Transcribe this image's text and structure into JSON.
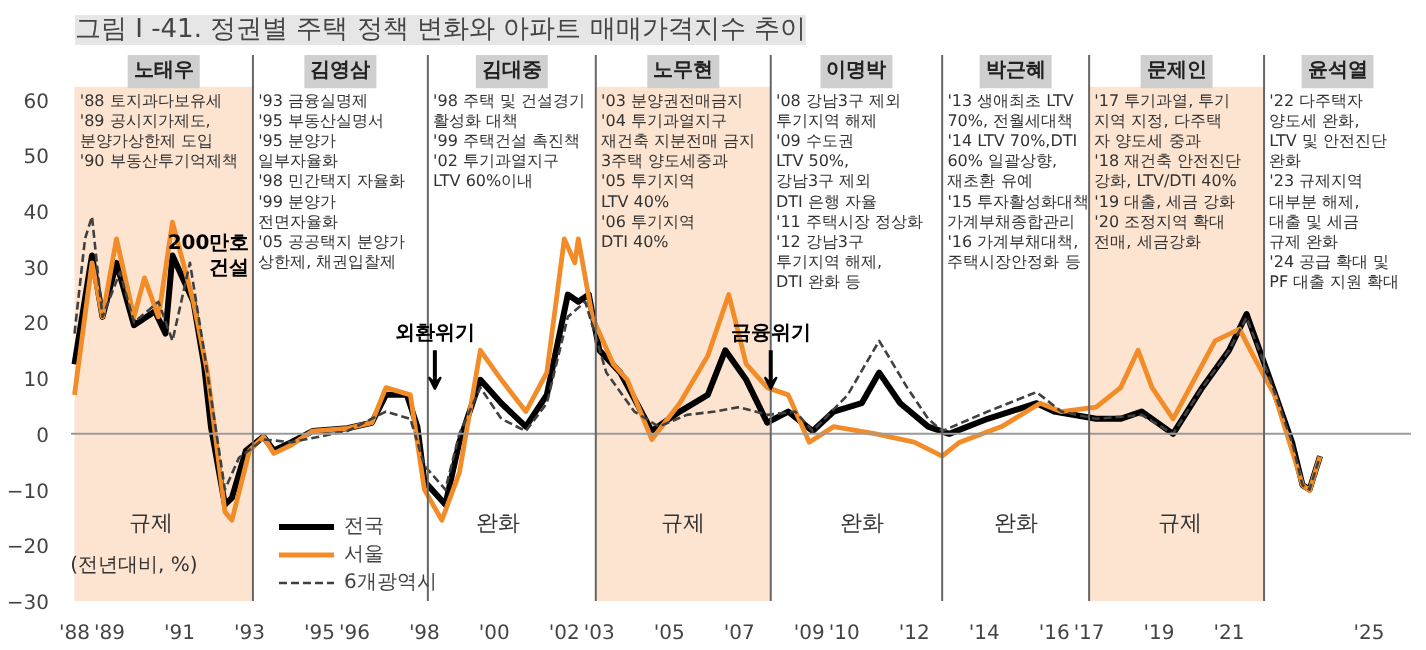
{
  "chart_data": {
    "type": "line",
    "title": "그림 I -41. 정권별 주택 정책 변화와 아파트 매매가격지수 추이",
    "xlim": [
      1987.9,
      2026.2
    ],
    "ylim": [
      -30,
      68
    ],
    "xticks": [
      {
        "value": 1988,
        "label": "'88"
      },
      {
        "value": 1989,
        "label": "'89"
      },
      {
        "value": 1991,
        "label": "'91"
      },
      {
        "value": 1993,
        "label": "'93"
      },
      {
        "value": 1995,
        "label": "'95"
      },
      {
        "value": 1996,
        "label": "'96"
      },
      {
        "value": 1998,
        "label": "'98"
      },
      {
        "value": 2000,
        "label": "'00"
      },
      {
        "value": 2002,
        "label": "'02"
      },
      {
        "value": 2003,
        "label": "'03"
      },
      {
        "value": 2005,
        "label": "'05"
      },
      {
        "value": 2007,
        "label": "'07"
      },
      {
        "value": 2009,
        "label": "'09"
      },
      {
        "value": 2010,
        "label": "'10"
      },
      {
        "value": 2012,
        "label": "'12"
      },
      {
        "value": 2014,
        "label": "'14"
      },
      {
        "value": 2016,
        "label": "'16"
      },
      {
        "value": 2017,
        "label": "'17"
      },
      {
        "value": 2019,
        "label": "'19"
      },
      {
        "value": 2021,
        "label": "'21"
      },
      {
        "value": 2025,
        "label": "'25"
      }
    ],
    "yticks": [
      -30,
      -20,
      -10,
      0,
      10,
      20,
      30,
      40,
      50,
      60
    ],
    "legend": "bottom left",
    "series": [
      {
        "name": "전국",
        "color": "#000000",
        "line_style": "solid",
        "x": [
          1988.0,
          1988.5,
          1988.8,
          1989.2,
          1989.7,
          1990.3,
          1990.6,
          1990.8,
          1991.4,
          1991.7,
          1991.9,
          1992.3,
          1992.5,
          1992.9,
          1993.4,
          1993.7,
          1994.2,
          1994.8,
          1995.8,
          1996.5,
          1996.9,
          1997.5,
          1997.8,
          1998.0,
          1998.6,
          1999.0,
          1999.6,
          2000.2,
          2000.9,
          2001.5,
          2002.1,
          2002.4,
          2002.7,
          2003.0,
          2003.6,
          2004.2,
          2004.5,
          2005.3,
          2006.1,
          2006.6,
          2007.2,
          2007.8,
          2008.4,
          2009.1,
          2009.7,
          2010.5,
          2011.0,
          2011.6,
          2012.4,
          2013.0,
          2014.1,
          2015.5,
          2016.0,
          2017.2,
          2017.9,
          2018.5,
          2019.4,
          2020.2,
          2021.0,
          2021.5,
          2022.1,
          2022.8,
          2023.1,
          2023.3,
          2023.6
        ],
        "values": [
          12.5,
          32,
          21,
          30.7,
          19.5,
          22,
          18,
          32,
          23.7,
          12.5,
          1.3,
          -12.7,
          -11.5,
          -3,
          -0.5,
          -3,
          -1.5,
          0.5,
          1,
          2,
          7,
          7,
          1.3,
          -8.5,
          -12.7,
          -1.5,
          9.7,
          5.5,
          1.3,
          7,
          25,
          23.7,
          25,
          15,
          11,
          4,
          0.5,
          4,
          7,
          15,
          9.7,
          2,
          4,
          0.5,
          4,
          5.5,
          11,
          5.5,
          1.3,
          0,
          2.7,
          5.5,
          4,
          2.7,
          2.7,
          4,
          0,
          8,
          15,
          21.5,
          11,
          -1.5,
          -9.2,
          -10,
          -4
        ]
      },
      {
        "name": "서울",
        "color": "#f28c28",
        "line_style": "solid",
        "x": [
          1988.0,
          1988.5,
          1988.8,
          1989.2,
          1989.7,
          1990.0,
          1990.4,
          1990.8,
          1991.4,
          1991.8,
          1992.3,
          1992.5,
          1993.0,
          1993.4,
          1993.7,
          1994.2,
          1994.8,
          1995.8,
          1996.5,
          1996.9,
          1997.6,
          1998.0,
          1998.5,
          1999.0,
          1999.6,
          2000.2,
          2000.9,
          2001.5,
          2002.0,
          2002.3,
          2002.4,
          2002.8,
          2003.4,
          2003.8,
          2004.5,
          2005.3,
          2006.1,
          2006.7,
          2007.2,
          2007.8,
          2008.4,
          2009.0,
          2009.7,
          2010.9,
          2012.0,
          2012.8,
          2013.3,
          2014.5,
          2015.6,
          2016.2,
          2017.2,
          2017.9,
          2018.4,
          2018.8,
          2019.4,
          2020.0,
          2020.6,
          2021.3,
          2021.7,
          2022.3,
          2022.8,
          2023.1,
          2023.3,
          2023.6
        ],
        "values": [
          7,
          30.7,
          21,
          35,
          21,
          28,
          21,
          38,
          23.7,
          11,
          -14,
          -15.5,
          -3,
          -0.5,
          -3.5,
          -2,
          0.5,
          1,
          2,
          8.3,
          7,
          -10,
          -15.5,
          -7,
          15,
          9.7,
          4,
          11,
          35,
          30.7,
          35,
          21,
          12.5,
          9.7,
          -1,
          5.5,
          14,
          25,
          12.5,
          8.3,
          7,
          -1.5,
          1.3,
          0,
          -1.5,
          -4,
          -1.5,
          1.3,
          5.5,
          4,
          4.8,
          8.3,
          15,
          8.3,
          2.7,
          9.7,
          16.7,
          18.8,
          13.9,
          7,
          -3,
          -9.2,
          -10.2,
          -4
        ]
      },
      {
        "name": "6개광역시",
        "color": "#404040",
        "line_style": "dashed",
        "x": [
          1988.0,
          1988.3,
          1988.5,
          1988.8,
          1989.3,
          1989.7,
          1990.4,
          1990.8,
          1991.3,
          1991.7,
          1992.3,
          1992.7,
          1993.4,
          1994.2,
          1995.8,
          1996.9,
          1997.6,
          1998.0,
          1998.6,
          1999.0,
          1999.6,
          2000.2,
          2000.9,
          2001.5,
          2002.1,
          2002.6,
          2003.2,
          2004.0,
          2004.7,
          2005.5,
          2006.3,
          2007.0,
          2007.8,
          2008.6,
          2009.1,
          2010.1,
          2011.0,
          2011.8,
          2012.4,
          2012.8,
          2014.1,
          2015.5,
          2016.2,
          2017.2,
          2018.5,
          2019.4,
          2020.2,
          2021.0,
          2021.5,
          2022.1,
          2022.8,
          2023.1,
          2023.3,
          2023.6
        ],
        "values": [
          18,
          35,
          39,
          21,
          29,
          20,
          23.7,
          16.7,
          30.7,
          15,
          -10,
          -4.3,
          -1,
          -1.5,
          0.5,
          4,
          2.7,
          -5.7,
          -10,
          0,
          8.3,
          2.7,
          0.5,
          5.5,
          21,
          23.7,
          11,
          4,
          1.3,
          3.4,
          4,
          4.8,
          3.4,
          4,
          0.5,
          7,
          16.7,
          8.3,
          2.7,
          0.5,
          4,
          7.5,
          4,
          2.7,
          3.4,
          0,
          8,
          15,
          20.9,
          11,
          -1.5,
          -9.2,
          -10,
          -4
        ]
      }
    ],
    "ref_lines": [
      {
        "axis": "y",
        "value": 0,
        "color": "#9a9a9a"
      },
      {
        "axis": "x",
        "value": 1993.1,
        "color": "#666666"
      },
      {
        "axis": "x",
        "value": 1998.1,
        "color": "#666666"
      },
      {
        "axis": "x",
        "value": 2002.9,
        "color": "#666666"
      },
      {
        "axis": "x",
        "value": 2007.9,
        "color": "#666666"
      },
      {
        "axis": "x",
        "value": 2012.8,
        "color": "#666666"
      },
      {
        "axis": "x",
        "value": 2017.0,
        "color": "#666666"
      },
      {
        "axis": "x",
        "value": 2022.0,
        "color": "#666666"
      }
    ],
    "bands": [
      {
        "axis": "x",
        "from": 1988.0,
        "to": 1993.1,
        "label": "노태우",
        "color": "#fde4d0"
      },
      {
        "axis": "x",
        "from": 2002.9,
        "to": 2007.9,
        "label": "노무현",
        "color": "#fde4d0"
      },
      {
        "axis": "x",
        "from": 2017.0,
        "to": 2022.0,
        "label": "문제인",
        "color": "#fde4d0"
      }
    ],
    "annotations": [
      "'88 토지과다보유세\n'89 공시지가제도,\n  분양가상한제 도입\n'90 부동산투기억제책",
      "'93 금융실명제\n'95 부동산실명서\n'95 분양가\n  일부자율화\n'98 민간택지 자율화\n'99 분양가\n  전면자율화\n'05 공공택지 분양가\n  상한제, 채권입찰제",
      "'98 주택 및 건설경기\n  활성화 대책\n'99 주택건설 촉진책\n'02 투기과열지구\n  LTV 60%이내",
      "'03 분양권전매금지\n'04 투기과열지구\n  재건축 지분전매 금지\n  3주택 양도세중과\n'05 투기지역\n  LTV 40%\n'06 투기지역\n  DTI 40%",
      "'08 강남3구 제외\n  투기지역 해제\n'09 수도권\n  LTV 50%,\n  강남3구 제외\n  DTI 은행 자율\n'11 주택시장 정상화\n'12 강남3구\n  투기지역 해제,\n  DTI 완화 등",
      "'13 생애최초 LTV\n  70%, 전월세대책\n'14 LTV 70%,DTI\n  60% 일괄상향,\n  재초환 유예\n'15 투자활성화대책\n  가계부채종합관리\n'16 가계부채대책,\n  주택시장안정화 등",
      "'17 투기과열, 투기\n  지역 지정, 다주택\n  자 양도세 중과\n'18 재건축 안전진단\n  강화, LTV/DTI 40%\n'19 대출, 세금 강화\n'20 조정지역 확대\n  전매, 세금강화",
      "'22 다주택자\n  양도세 완화,\n  LTV 및 안전진단\n  완화\n'23 규제지역\n  대부분 해제,\n  대출 및 세금\n  규제 완화\n'24 공급 확대 및\n  PF 대출 지원 확대",
      "규제",
      "완화",
      "규제",
      "완화",
      "완화",
      "규제",
      "(전년대비, %)",
      "200만호\n건설",
      {
        "text": "외환위기",
        "x": 1998.3,
        "y": 8
      },
      {
        "text": "금융위기",
        "x": 2007.9,
        "y": 8
      },
      "김영삼",
      "김대중",
      "이명박",
      "박근혜",
      "윤석열"
    ]
  }
}
